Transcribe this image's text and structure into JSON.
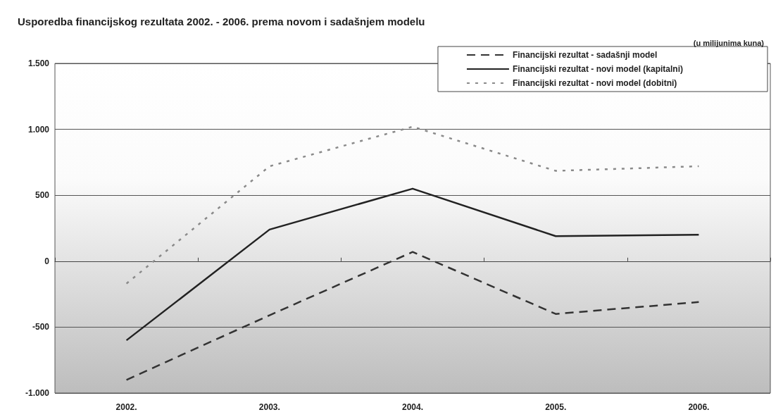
{
  "chart_data": {
    "type": "line",
    "title": "Usporedba financijskog rezultata 2002. - 2006. prema novom i sadašnjem modelu",
    "subtitle": "(u milijunima kuna)",
    "categories": [
      "2002.",
      "2003.",
      "2004.",
      "2005.",
      "2006."
    ],
    "series": [
      {
        "name": "Financijski rezultat - sadašnji model",
        "color": "#333333",
        "line_style": "dashed",
        "values": [
          -900,
          -410,
          70,
          -400,
          -310
        ]
      },
      {
        "name": "Financijski rezultat - novi model (kapitalni)",
        "color": "#222222",
        "line_style": "solid",
        "values": [
          -600,
          240,
          550,
          190,
          200
        ]
      },
      {
        "name": "Financijski rezultat - novi model (dobitni)",
        "color": "#8a8a8a",
        "line_style": "dotted",
        "values": [
          -170,
          720,
          1020,
          685,
          720
        ]
      }
    ],
    "ylim": [
      -1000,
      1500
    ],
    "yticks": [
      {
        "value": -1000,
        "label": "-1.000"
      },
      {
        "value": -500,
        "label": "-500"
      },
      {
        "value": 0,
        "label": "0"
      },
      {
        "value": 500,
        "label": "500"
      },
      {
        "value": 1000,
        "label": "1.000"
      },
      {
        "value": 1500,
        "label": "1.500"
      }
    ],
    "grid": "y",
    "legend": "top right",
    "marker": "none"
  }
}
